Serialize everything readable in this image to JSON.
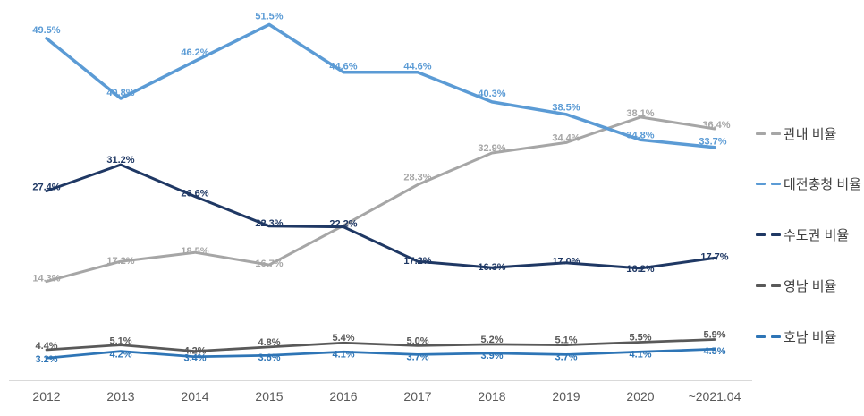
{
  "page": {
    "background": "#FFFFFF"
  },
  "chart_data": {
    "type": "line",
    "title": "",
    "xlabel": "",
    "ylabel": "",
    "categories": [
      "2012",
      "2013",
      "2014",
      "2015",
      "2016",
      "2017",
      "2018",
      "2019",
      "2020",
      "~2021.04"
    ],
    "series": [
      {
        "name": "관내 비율",
        "color": "#A6A6A6",
        "values": [
          14.3,
          17.2,
          18.5,
          16.7,
          22.4,
          28.3,
          32.9,
          34.4,
          38.1,
          36.4
        ],
        "labels": [
          "14.3%",
          "17.2%",
          "18.5%",
          "16.7%",
          null,
          "28.3%",
          "32.9%",
          "34.4%",
          "38.1%",
          "36.4%"
        ]
      },
      {
        "name": "대전충청 비율",
        "color": "#5B9BD5",
        "values": [
          49.5,
          40.8,
          46.2,
          51.5,
          44.6,
          44.6,
          40.3,
          38.5,
          34.8,
          33.7
        ],
        "labels": [
          "49.5%",
          "40.8%",
          "46.2%",
          "51.5%",
          "44.6%",
          "44.6%",
          "40.3%",
          "38.5%",
          "34.8%",
          "33.7%"
        ]
      },
      {
        "name": "수도권 비율",
        "color": "#1F3864",
        "values": [
          27.4,
          31.2,
          26.6,
          22.3,
          22.2,
          17.2,
          16.3,
          17.0,
          16.2,
          17.7
        ],
        "labels": [
          "27.4%",
          "31.2%",
          "26.6%",
          "22.3%",
          "22.2%",
          "17.2%",
          "16.3%",
          "17.0%",
          "16.2%",
          "17.7%"
        ]
      },
      {
        "name": "영남 비율",
        "color": "#595959",
        "values": [
          4.4,
          5.1,
          4.2,
          4.8,
          5.4,
          5.0,
          5.2,
          5.1,
          5.5,
          5.9
        ],
        "labels": [
          "4.4%",
          "5.1%",
          "4.2%",
          "4.8%",
          "5.4%",
          "5.0%",
          "5.2%",
          "5.1%",
          "5.5%",
          "5.9%"
        ]
      },
      {
        "name": "호남 비율",
        "color": "#2E75B6",
        "values": [
          3.2,
          4.2,
          3.4,
          3.6,
          4.1,
          3.7,
          3.9,
          3.7,
          4.1,
          4.5
        ],
        "labels": [
          "3.2%",
          "4.2%",
          "3.4%",
          "3.6%",
          "4.1%",
          "3.7%",
          "3.9%",
          "3.7%",
          "4.1%",
          "4.5%"
        ]
      }
    ],
    "ylim": [
      0,
      56
    ],
    "grid": false,
    "legend_position": "right",
    "axis_line_color": "#D9D9D9",
    "tick_label_color": "#595959",
    "legend_text_color": "#404040"
  }
}
